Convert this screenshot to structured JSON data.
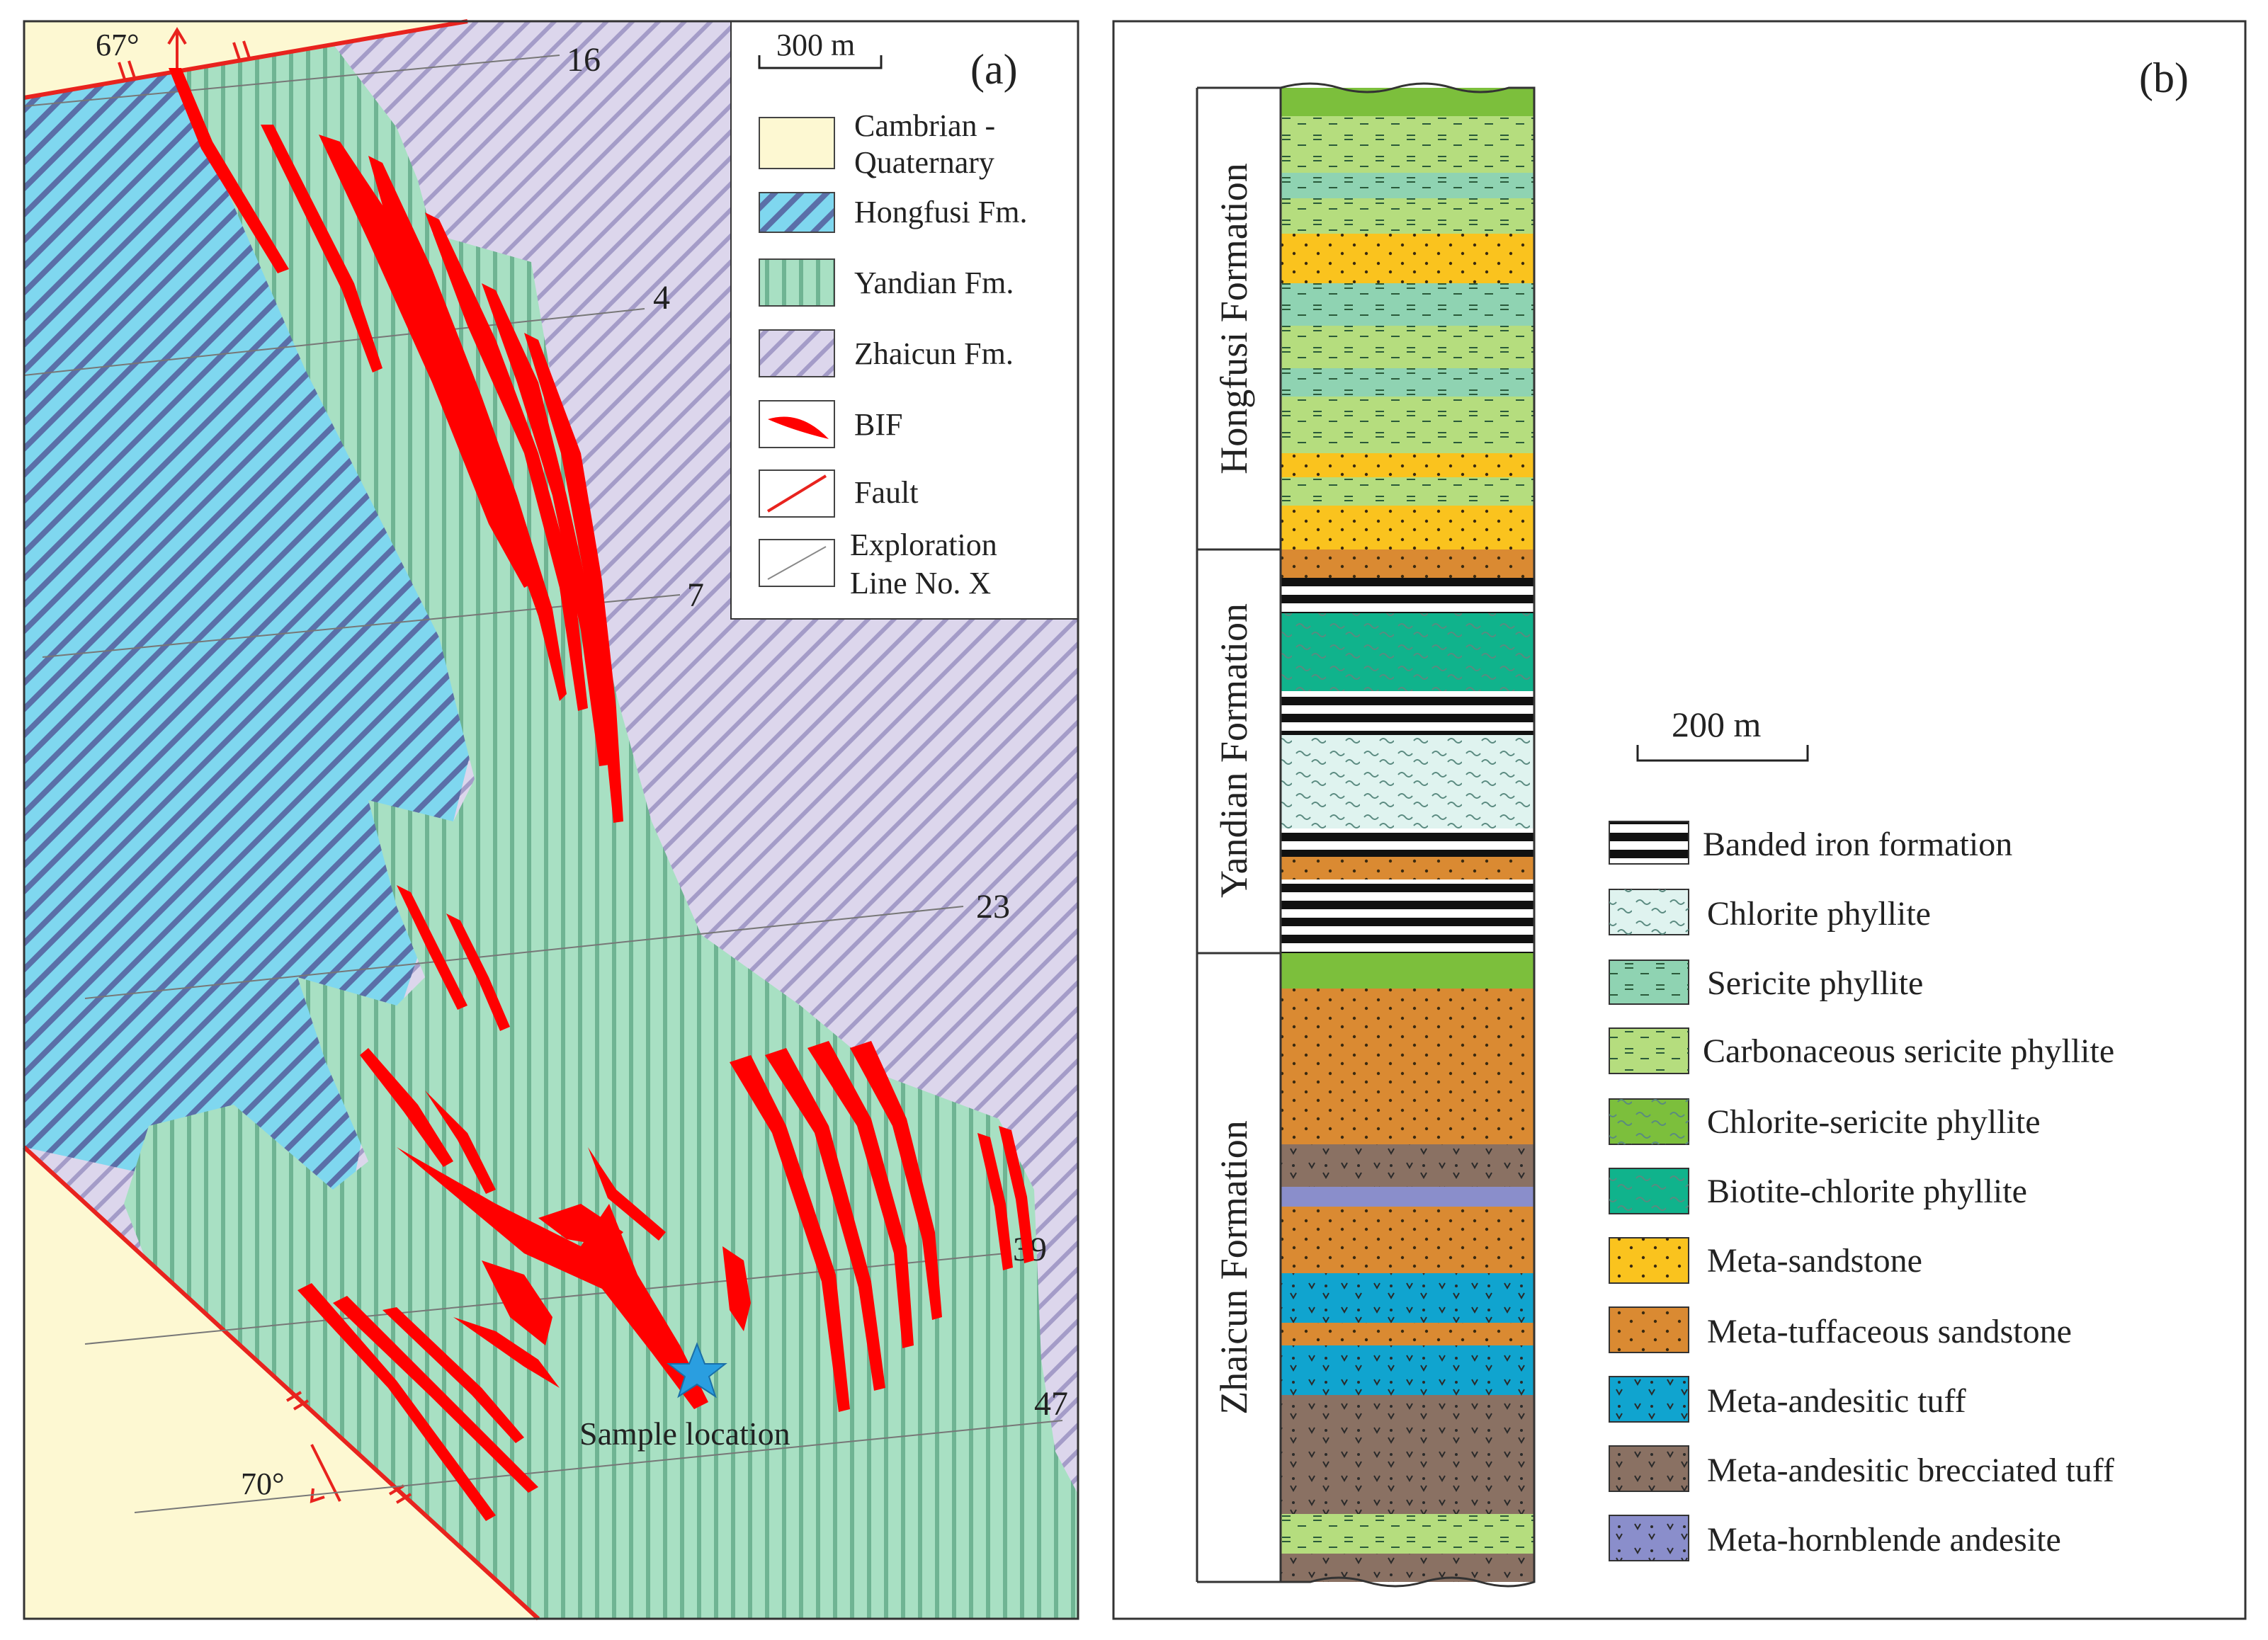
{
  "panel_a": {
    "label": "(a)",
    "scale_bar": "300 m",
    "dip_top": "67°",
    "dip_bottom": "70°",
    "sample_label": "Sample location",
    "exploration_lines": [
      "16",
      "4",
      "7",
      "23",
      "39",
      "47"
    ],
    "legend": [
      {
        "id": "cambrian",
        "line1": "Cambrian -",
        "line2": "Quaternary",
        "color": "#fdf8d2"
      },
      {
        "id": "hongfusi",
        "line1": "Hongfusi Fm.",
        "line2": "",
        "color": "#7fd7ef"
      },
      {
        "id": "yandian",
        "line1": "Yandian Fm.",
        "line2": "",
        "color": "#a8e0c3"
      },
      {
        "id": "zhaicun",
        "line1": "Zhaicun Fm.",
        "line2": "",
        "color": "#dcd6ec"
      },
      {
        "id": "bif",
        "line1": "BIF",
        "line2": "",
        "color": "#ff0000"
      },
      {
        "id": "fault",
        "line1": "Fault",
        "line2": "",
        "color": "#e8231e"
      },
      {
        "id": "exploration",
        "line1": "Exploration",
        "line2": "Line No. X",
        "color": "#888888"
      }
    ]
  },
  "panel_b": {
    "label": "(b)",
    "scale_bar": "200 m",
    "formations": [
      "Hongfusi Formation",
      "Yandian Formation",
      "Zhaicun Formation"
    ],
    "legend": [
      {
        "id": "bif",
        "label": "Banded iron formation",
        "color": "#111111"
      },
      {
        "id": "chlorite",
        "label": "Chlorite phyllite",
        "color": "#dff3ef"
      },
      {
        "id": "sericite",
        "label": "Sericite phyllite",
        "color": "#8fd3b2"
      },
      {
        "id": "carbonaceous",
        "label": "Carbonaceous sericite phyllite",
        "color": "#b5dd7e"
      },
      {
        "id": "chlorite_sericite",
        "label": "Chlorite-sericite phyllite",
        "color": "#7cbf3c"
      },
      {
        "id": "biotite_chlorite",
        "label": "Biotite-chlorite phyllite",
        "color": "#10b38c"
      },
      {
        "id": "meta_sandstone",
        "label": "Meta-sandstone",
        "color": "#fac31e"
      },
      {
        "id": "meta_tuff_sandstone",
        "label": "Meta-tuffaceous sandstone",
        "color": "#da8a32"
      },
      {
        "id": "andesitic_tuff",
        "label": "Meta-andesitic tuff",
        "color": "#10a4cf"
      },
      {
        "id": "brecciated_tuff",
        "label": "Meta-andesitic brecciated tuff",
        "color": "#8a7163"
      },
      {
        "id": "hornblende_andesite",
        "label": "Meta-hornblende andesite",
        "color": "#8a8ecb"
      }
    ]
  }
}
